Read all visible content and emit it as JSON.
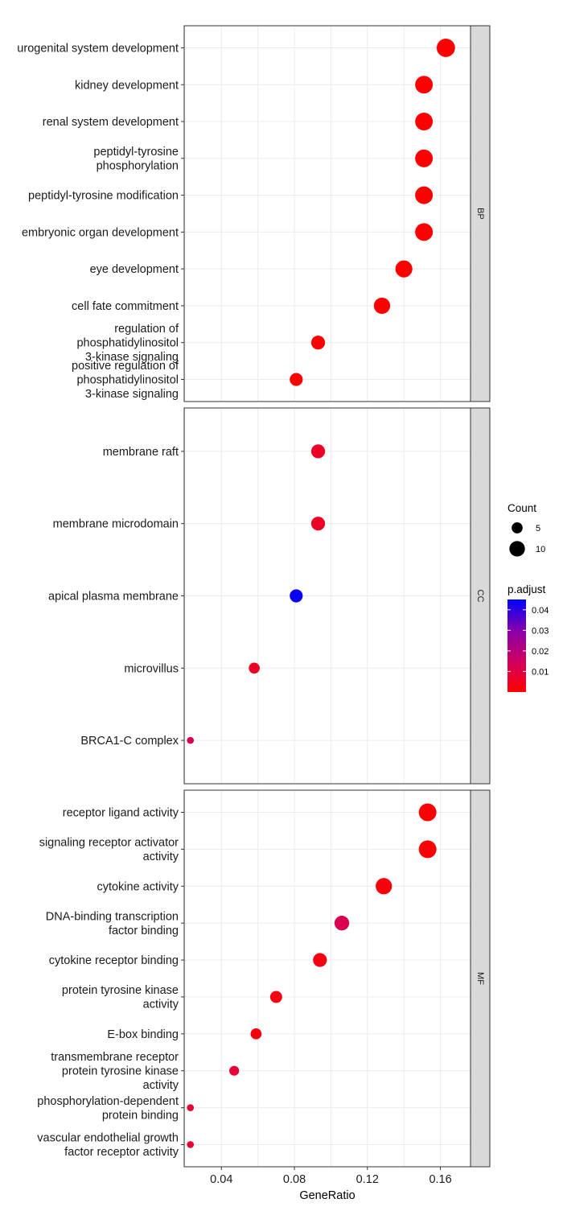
{
  "chart_data": {
    "type": "scatter",
    "title": "",
    "xlabel": "GeneRatio",
    "ylabel": "",
    "xlim": [
      0.0196,
      0.1765
    ],
    "x_ticks": [
      0.04,
      0.08,
      0.12,
      0.16
    ],
    "x_tick_labels": [
      "0.04",
      "0.08",
      "0.12",
      "0.16"
    ],
    "grid": true,
    "facets": [
      {
        "name": "BP",
        "terms": [
          {
            "label": "urogenital system development",
            "x": 0.163,
            "count": 14,
            "p_adjust": 0.0
          },
          {
            "label": "kidney development",
            "x": 0.151,
            "count": 13,
            "p_adjust": 0.0
          },
          {
            "label": "renal system development",
            "x": 0.151,
            "count": 13,
            "p_adjust": 0.0
          },
          {
            "label": "peptidyl-tyrosine\nphosphorylation",
            "x": 0.151,
            "count": 13,
            "p_adjust": 0.0
          },
          {
            "label": "peptidyl-tyrosine modification",
            "x": 0.151,
            "count": 13,
            "p_adjust": 0.0
          },
          {
            "label": "embryonic organ development",
            "x": 0.151,
            "count": 13,
            "p_adjust": 0.0
          },
          {
            "label": "eye development",
            "x": 0.14,
            "count": 12,
            "p_adjust": 0.0
          },
          {
            "label": "cell fate commitment",
            "x": 0.128,
            "count": 11,
            "p_adjust": 0.0
          },
          {
            "label": "regulation of\nphosphatidylinositol\n3-kinase signaling",
            "x": 0.093,
            "count": 8,
            "p_adjust": 0.0
          },
          {
            "label": "positive regulation of\nphosphatidylinositol\n3-kinase signaling",
            "x": 0.081,
            "count": 7,
            "p_adjust": 0.0
          }
        ]
      },
      {
        "name": "CC",
        "terms": [
          {
            "label": "membrane raft",
            "x": 0.093,
            "count": 8,
            "p_adjust": 0.006
          },
          {
            "label": "membrane microdomain",
            "x": 0.093,
            "count": 8,
            "p_adjust": 0.006
          },
          {
            "label": "apical plasma membrane",
            "x": 0.081,
            "count": 7,
            "p_adjust": 0.044
          },
          {
            "label": "microvillus",
            "x": 0.058,
            "count": 5,
            "p_adjust": 0.006
          },
          {
            "label": "BRCA1-C complex",
            "x": 0.023,
            "count": 2,
            "p_adjust": 0.012
          }
        ]
      },
      {
        "name": "MF",
        "terms": [
          {
            "label": "receptor ligand activity",
            "x": 0.153,
            "count": 13,
            "p_adjust": 0.001
          },
          {
            "label": "signaling receptor activator\nactivity",
            "x": 0.153,
            "count": 13,
            "p_adjust": 0.001
          },
          {
            "label": "cytokine activity",
            "x": 0.129,
            "count": 11,
            "p_adjust": 0.002
          },
          {
            "label": "DNA-binding transcription\nfactor binding",
            "x": 0.106,
            "count": 9,
            "p_adjust": 0.012
          },
          {
            "label": "cytokine receptor binding",
            "x": 0.094,
            "count": 8,
            "p_adjust": 0.003
          },
          {
            "label": "protein tyrosine kinase\nactivity",
            "x": 0.07,
            "count": 6,
            "p_adjust": 0.003
          },
          {
            "label": "E-box binding",
            "x": 0.059,
            "count": 5,
            "p_adjust": 0.002
          },
          {
            "label": "transmembrane receptor\nprotein tyrosine kinase\nactivity",
            "x": 0.047,
            "count": 4,
            "p_adjust": 0.008
          },
          {
            "label": "phosphorylation-dependent\nprotein binding",
            "x": 0.023,
            "count": 2,
            "p_adjust": 0.008
          },
          {
            "label": "vascular endothelial growth\nfactor receptor activity",
            "x": 0.023,
            "count": 2,
            "p_adjust": 0.008
          }
        ]
      }
    ],
    "legend": {
      "placement": "right",
      "size_title": "Count",
      "size_entries": [
        5,
        10
      ],
      "color_title": "p.adjust",
      "color_ticks": [
        0.01,
        0.02,
        0.03,
        0.04
      ],
      "color_tick_labels": [
        "0.01",
        "0.02",
        "0.03",
        "0.04"
      ],
      "color_range": [
        0.0,
        0.045
      ],
      "color_low": "#ff0000",
      "color_high": "#0000ff"
    },
    "colors": {
      "panel_border": "#333333",
      "grid": "#ebebeb",
      "strip_fill": "#d9d9d9"
    }
  }
}
